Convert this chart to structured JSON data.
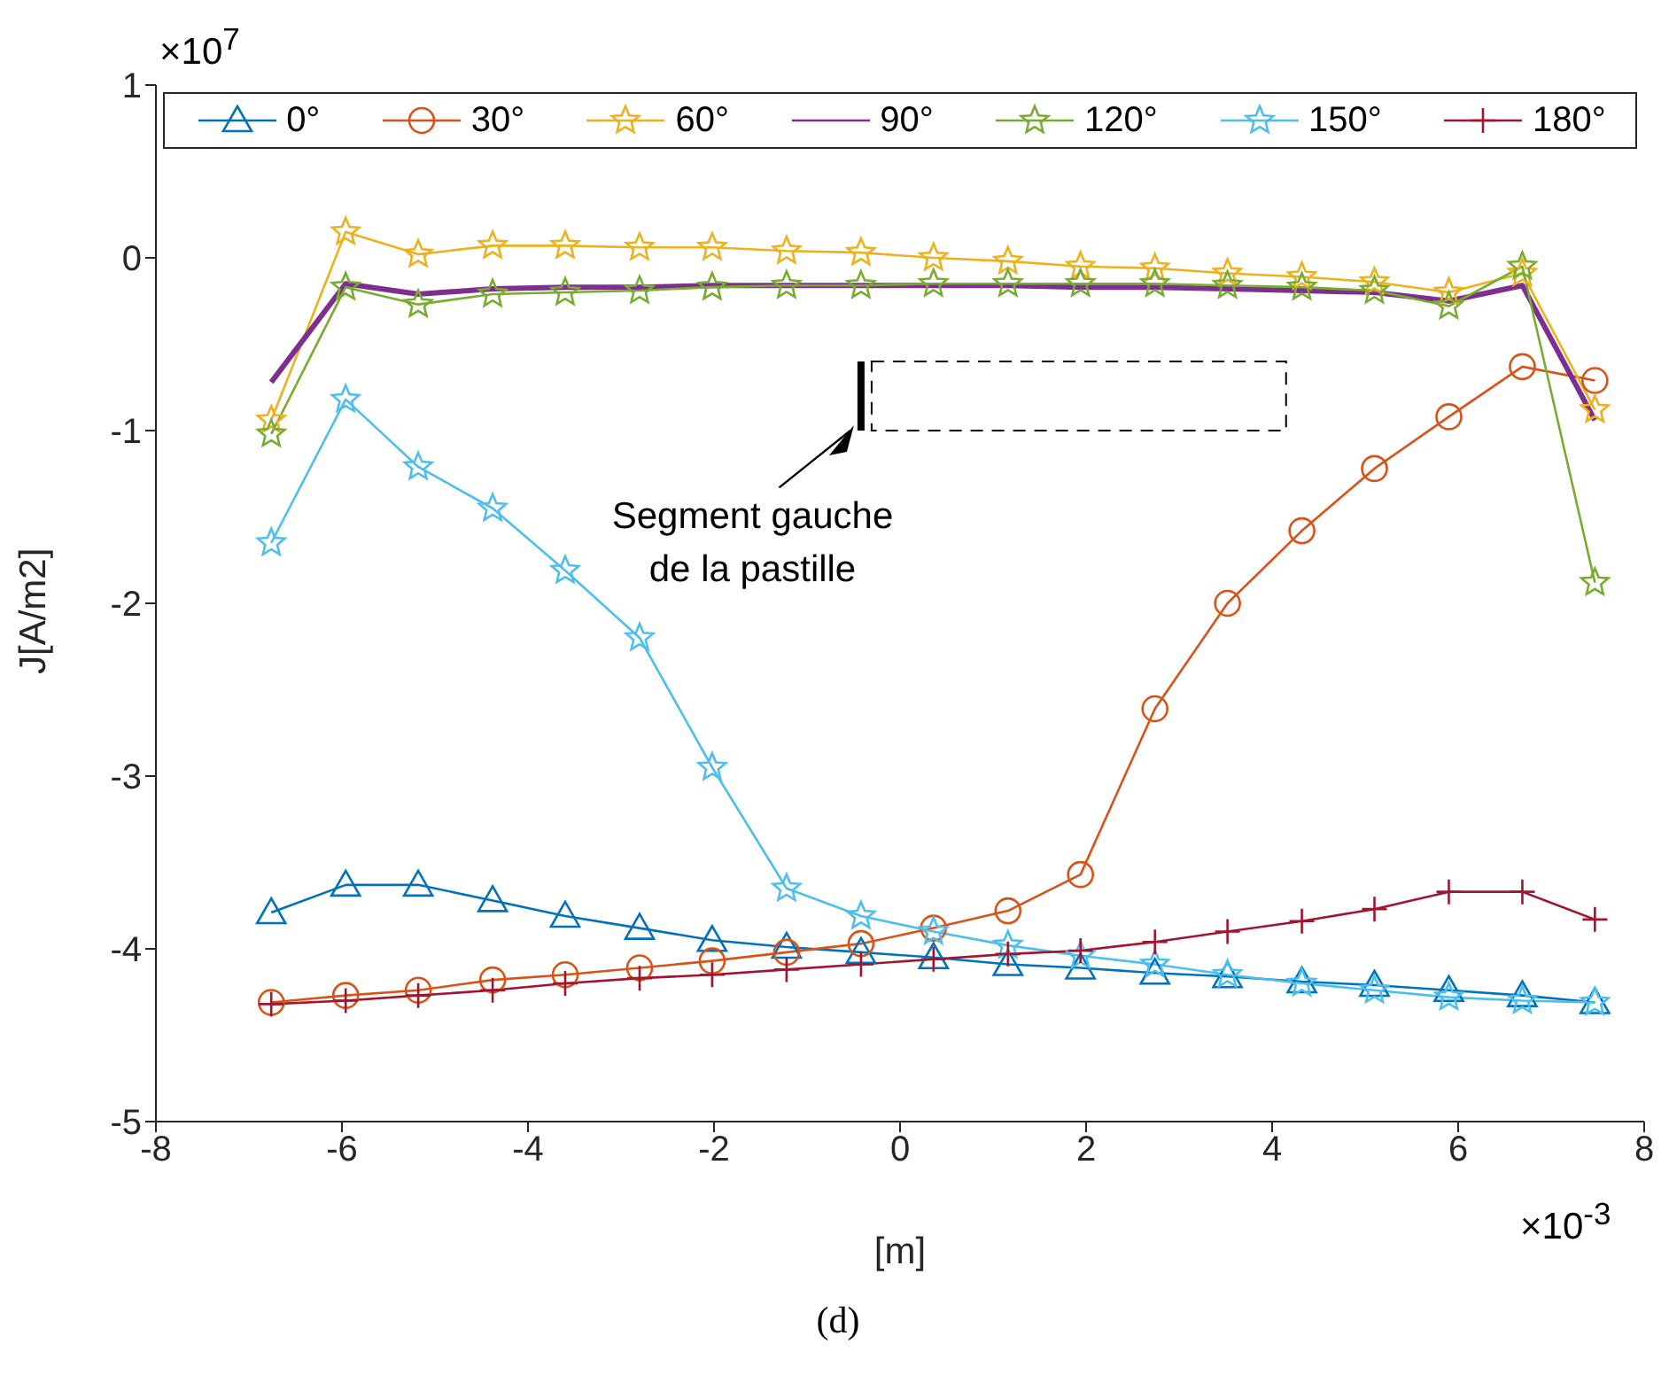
{
  "chart_data": {
    "type": "line",
    "xlabel": "[m]",
    "ylabel": "J[A/m2]",
    "x": [
      -6.76,
      -5.96,
      -5.18,
      -4.38,
      -3.6,
      -2.8,
      -2.02,
      -1.22,
      -0.42,
      0.36,
      1.16,
      1.94,
      2.74,
      3.52,
      4.32,
      5.1,
      5.9,
      6.69,
      7.47
    ],
    "series": [
      {
        "name": "0°",
        "color": "#0072bd",
        "marker": "triangle",
        "values": [
          -3.79,
          -3.63,
          -3.63,
          -3.72,
          -3.81,
          -3.88,
          -3.95,
          -3.99,
          -4.02,
          -4.05,
          -4.09,
          -4.11,
          -4.14,
          -4.16,
          -4.19,
          -4.21,
          -4.24,
          -4.27,
          -4.31
        ]
      },
      {
        "name": "30°",
        "color": "#d95319",
        "marker": "circle",
        "values": [
          -4.31,
          -4.27,
          -4.24,
          -4.18,
          -4.15,
          -4.11,
          -4.07,
          -4.02,
          -3.97,
          -3.88,
          -3.78,
          -3.57,
          -2.61,
          -2.0,
          -1.58,
          -1.22,
          -0.92,
          -0.63,
          -0.71
        ]
      },
      {
        "name": "60°",
        "color": "#edb120",
        "marker": "star",
        "values": [
          -0.94,
          0.15,
          0.02,
          0.07,
          0.07,
          0.06,
          0.06,
          0.04,
          0.03,
          0,
          -0.02,
          -0.05,
          -0.06,
          -0.09,
          -0.11,
          -0.14,
          -0.2,
          -0.09,
          -0.88
        ]
      },
      {
        "name": "90°",
        "color": "#7e2f8e",
        "marker": "none",
        "values": [
          -0.72,
          -0.15,
          -0.21,
          -0.18,
          -0.17,
          -0.17,
          -0.16,
          -0.16,
          -0.16,
          -0.16,
          -0.16,
          -0.17,
          -0.17,
          -0.18,
          -0.19,
          -0.2,
          -0.25,
          -0.16,
          -0.94
        ]
      },
      {
        "name": "120°",
        "color": "#77ac30",
        "marker": "star",
        "values": [
          -1.02,
          -0.17,
          -0.27,
          -0.21,
          -0.2,
          -0.19,
          -0.17,
          -0.16,
          -0.16,
          -0.15,
          -0.15,
          -0.15,
          -0.15,
          -0.16,
          -0.17,
          -0.19,
          -0.28,
          -0.05,
          -1.88
        ]
      },
      {
        "name": "150°",
        "color": "#4dbeee",
        "marker": "star",
        "values": [
          -1.65,
          -0.82,
          -1.21,
          -1.45,
          -1.81,
          -2.2,
          -2.95,
          -3.65,
          -3.81,
          -3.9,
          -3.98,
          -4.04,
          -4.09,
          -4.15,
          -4.2,
          -4.24,
          -4.28,
          -4.3,
          -4.31
        ]
      },
      {
        "name": "180°",
        "color": "#a2142f",
        "marker": "cross",
        "values": [
          -4.32,
          -4.3,
          -4.27,
          -4.24,
          -4.2,
          -4.17,
          -4.15,
          -4.12,
          -4.09,
          -4.06,
          -4.03,
          -4.01,
          -3.96,
          -3.9,
          -3.84,
          -3.77,
          -3.67,
          -3.67,
          -3.83
        ]
      }
    ],
    "xlim": [
      -8,
      8
    ],
    "xticks": [
      -8,
      -6,
      -4,
      -2,
      0,
      2,
      4,
      6,
      8
    ],
    "ylim": [
      -5,
      1
    ],
    "yticks": [
      -5,
      -4,
      -3,
      -2,
      -1,
      0,
      1
    ],
    "grid": false,
    "legend": "top",
    "annotations": [
      "×10$^{7}$",
      "×10$^{-3}$",
      "Segment gauche de la pastille",
      "(d)"
    ]
  }
}
